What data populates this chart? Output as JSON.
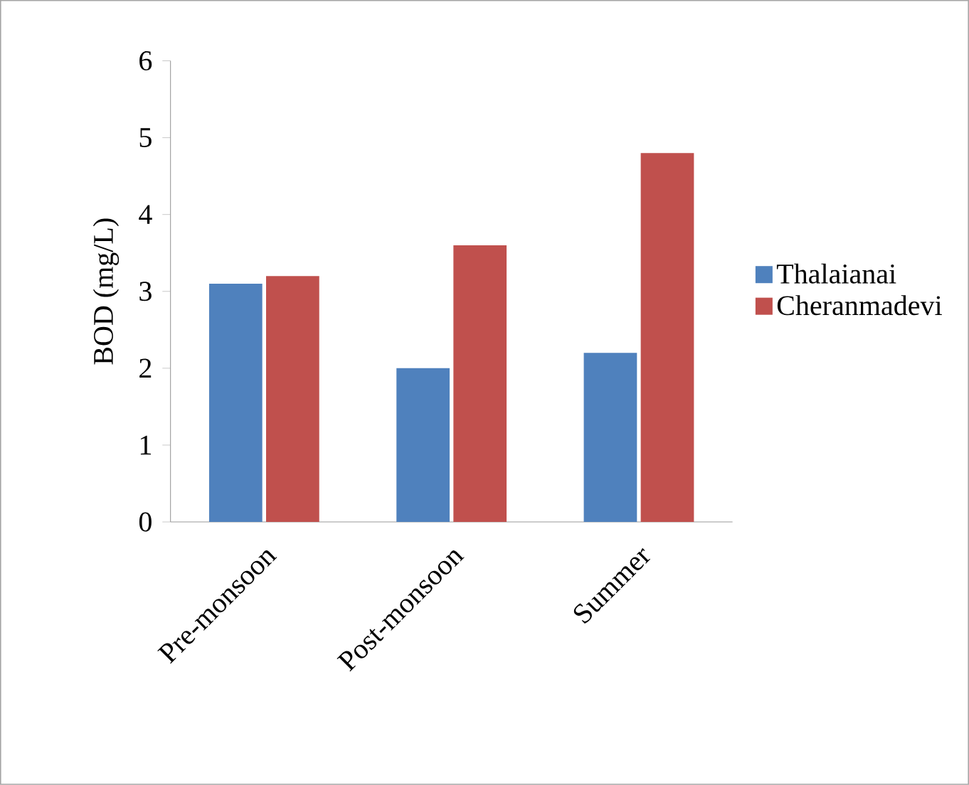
{
  "chart_data": {
    "type": "bar",
    "ylabel": "BOD (mg/L)",
    "categories": [
      "Pre-monsoon",
      "Post-monsoon",
      "Summer"
    ],
    "series": [
      {
        "name": "Thalaianai",
        "color": "#4f81bd",
        "values": [
          3.1,
          2.0,
          2.2
        ]
      },
      {
        "name": "Cheranmadevi",
        "color": "#c0504d",
        "values": [
          3.2,
          3.6,
          4.8
        ]
      }
    ],
    "ylim": [
      0,
      6
    ],
    "yticks": [
      0,
      1,
      2,
      3,
      4,
      5,
      6
    ],
    "grid": false,
    "legend": "right"
  }
}
